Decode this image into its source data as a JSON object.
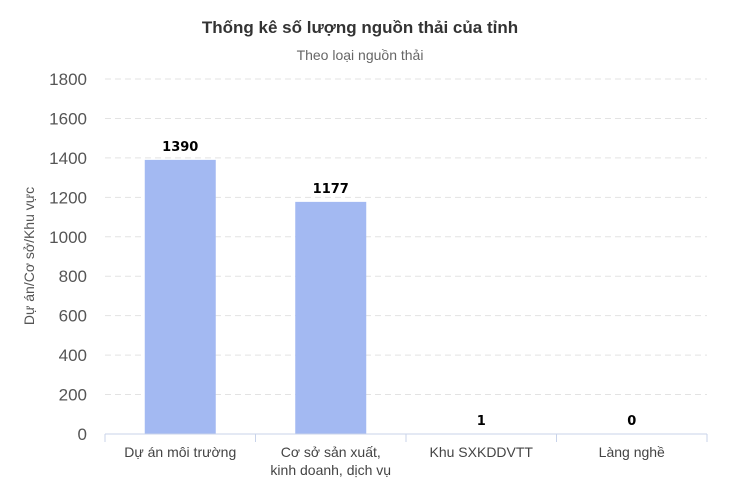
{
  "chart_data": {
    "type": "bar",
    "title": "Thống kê số lượng nguồn thải của tỉnh",
    "subtitle": "Theo loại nguồn thải",
    "xlabel": "",
    "ylabel": "Dự án/Cơ sở/Khu vực",
    "categories": [
      [
        "Dự án môi trường"
      ],
      [
        "Cơ sở sản xuất,",
        "kinh doanh, dịch vụ"
      ],
      [
        "Khu SXKDDVTT"
      ],
      [
        "Làng nghề"
      ]
    ],
    "values": [
      1390,
      1177,
      1,
      0
    ],
    "ylim": [
      0,
      1800
    ],
    "yticks": [
      0,
      200,
      400,
      600,
      800,
      1000,
      1200,
      1400,
      1600,
      1800
    ],
    "grid": true,
    "bar_color": "#a3b9f2",
    "data_labels": true
  }
}
